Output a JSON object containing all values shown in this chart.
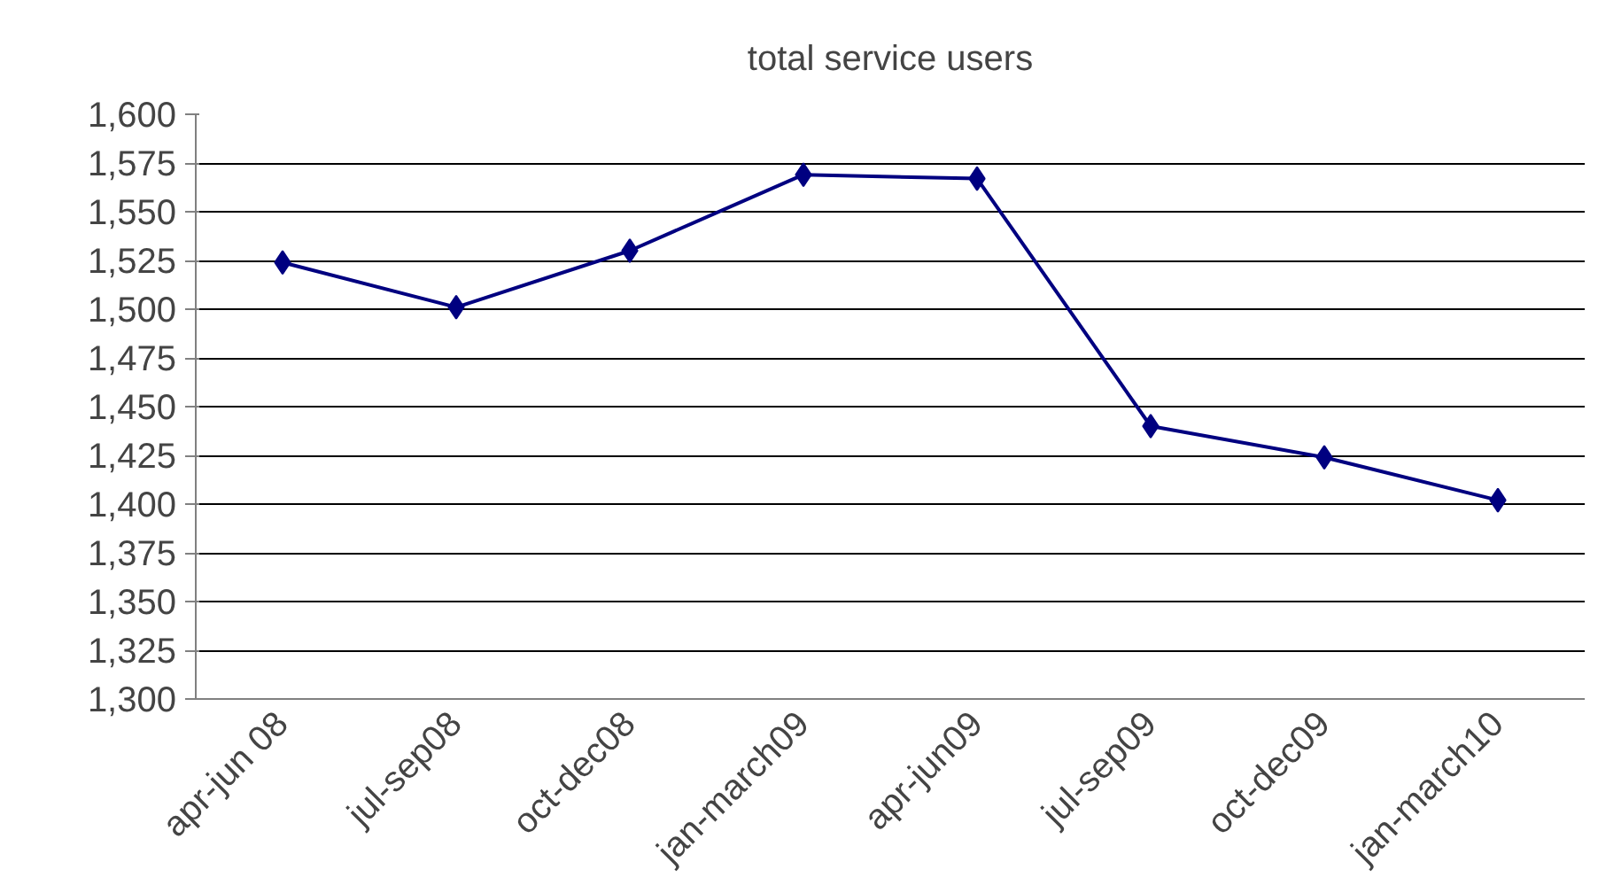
{
  "chart_data": {
    "type": "line",
    "title": "total service users",
    "categories": [
      "apr-jun 08",
      "jul-sep08",
      "oct-dec08",
      "jan-march09",
      "apr-jun09",
      "jul-sep09",
      "oct-dec09",
      "jan-march10"
    ],
    "series": [
      {
        "color": "#000080",
        "values": [
          1524,
          1501,
          1530,
          1569,
          1567,
          1440,
          1424,
          1402
        ]
      }
    ],
    "ylim": [
      1300,
      1600
    ],
    "yticks": [
      {
        "value": 1300,
        "label": "1,300"
      },
      {
        "value": 1325,
        "label": "1,325"
      },
      {
        "value": 1350,
        "label": "1,350"
      },
      {
        "value": 1375,
        "label": "1,375"
      },
      {
        "value": 1400,
        "label": "1,400"
      },
      {
        "value": 1425,
        "label": "1,425"
      },
      {
        "value": 1450,
        "label": "1,450"
      },
      {
        "value": 1475,
        "label": "1,475"
      },
      {
        "value": 1500,
        "label": "1,500"
      },
      {
        "value": 1525,
        "label": "1,525"
      },
      {
        "value": 1550,
        "label": "1,550"
      },
      {
        "value": 1575,
        "label": "1,575"
      },
      {
        "value": 1600,
        "label": "1,600"
      }
    ],
    "grid": "y",
    "marker": "diamond",
    "line_style": "solid"
  }
}
